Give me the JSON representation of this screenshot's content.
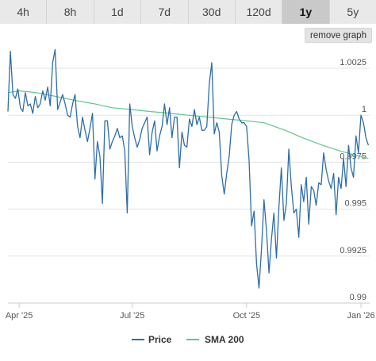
{
  "tabs": [
    {
      "label": "4h",
      "active": false
    },
    {
      "label": "8h",
      "active": false
    },
    {
      "label": "1d",
      "active": false
    },
    {
      "label": "7d",
      "active": false
    },
    {
      "label": "30d",
      "active": false
    },
    {
      "label": "120d",
      "active": false
    },
    {
      "label": "1y",
      "active": true
    },
    {
      "label": "5y",
      "active": false
    }
  ],
  "remove_graph_label": "remove graph",
  "colors": {
    "price": "#2d6ea8",
    "sma": "#5cc98a",
    "grid": "#e3e3e3",
    "text": "#555555"
  },
  "chart_data": {
    "type": "line",
    "title": "",
    "xlabel": "",
    "ylabel": "",
    "x_range": [
      "2025-03-23",
      "2026-01-08"
    ],
    "ylim": [
      0.99,
      1.0036
    ],
    "y_ticks": [
      1.0025,
      1,
      0.9975,
      0.995,
      0.9925,
      0.99
    ],
    "y_tick_labels": [
      "1.0025",
      "1",
      "0.9975",
      "0.995",
      "0.9925",
      "0.99"
    ],
    "x_ticks": [
      "2025-04-01",
      "2025-07-01",
      "2025-10-01",
      "2026-01-01"
    ],
    "x_tick_labels": [
      "Apr '25",
      "Jul '25",
      "Oct '25",
      "Jan '26"
    ],
    "grid": true,
    "legend_position": "bottom",
    "series": [
      {
        "name": "Price",
        "color": "#2d6ea8",
        "x": [
          "2025-03-23",
          "2025-03-25",
          "2025-03-27",
          "2025-03-29",
          "2025-03-31",
          "2025-04-02",
          "2025-04-04",
          "2025-04-06",
          "2025-04-08",
          "2025-04-10",
          "2025-04-12",
          "2025-04-14",
          "2025-04-16",
          "2025-04-18",
          "2025-04-20",
          "2025-04-22",
          "2025-04-24",
          "2025-04-26",
          "2025-04-28",
          "2025-04-30",
          "2025-05-02",
          "2025-05-04",
          "2025-05-06",
          "2025-05-08",
          "2025-05-10",
          "2025-05-12",
          "2025-05-14",
          "2025-05-16",
          "2025-05-18",
          "2025-05-20",
          "2025-05-22",
          "2025-05-24",
          "2025-05-26",
          "2025-05-28",
          "2025-05-30",
          "2025-06-01",
          "2025-06-03",
          "2025-06-05",
          "2025-06-07",
          "2025-06-09",
          "2025-06-11",
          "2025-06-13",
          "2025-06-15",
          "2025-06-17",
          "2025-06-19",
          "2025-06-21",
          "2025-06-23",
          "2025-06-25",
          "2025-06-27",
          "2025-06-29",
          "2025-07-01",
          "2025-07-03",
          "2025-07-05",
          "2025-07-07",
          "2025-07-09",
          "2025-07-11",
          "2025-07-13",
          "2025-07-15",
          "2025-07-17",
          "2025-07-19",
          "2025-07-21",
          "2025-07-23",
          "2025-07-25",
          "2025-07-27",
          "2025-07-29",
          "2025-07-31",
          "2025-08-02",
          "2025-08-04",
          "2025-08-06",
          "2025-08-08",
          "2025-08-10",
          "2025-08-12",
          "2025-08-14",
          "2025-08-16",
          "2025-08-18",
          "2025-08-20",
          "2025-08-22",
          "2025-08-24",
          "2025-08-26",
          "2025-08-28",
          "2025-08-30",
          "2025-09-01",
          "2025-09-03",
          "2025-09-05",
          "2025-09-07",
          "2025-09-09",
          "2025-09-11",
          "2025-09-13",
          "2025-09-15",
          "2025-09-17",
          "2025-09-19",
          "2025-09-21",
          "2025-09-23",
          "2025-09-25",
          "2025-09-27",
          "2025-09-29",
          "2025-10-01",
          "2025-10-03",
          "2025-10-05",
          "2025-10-07",
          "2025-10-09",
          "2025-10-11",
          "2025-10-13",
          "2025-10-15",
          "2025-10-17",
          "2025-10-19",
          "2025-10-21",
          "2025-10-23",
          "2025-10-25",
          "2025-10-27",
          "2025-10-29",
          "2025-10-31",
          "2025-11-02",
          "2025-11-04",
          "2025-11-06",
          "2025-11-08",
          "2025-11-10",
          "2025-11-12",
          "2025-11-14",
          "2025-11-16",
          "2025-11-18",
          "2025-11-20",
          "2025-11-22",
          "2025-11-24",
          "2025-11-26",
          "2025-11-28",
          "2025-11-30",
          "2025-12-02",
          "2025-12-04",
          "2025-12-06",
          "2025-12-08",
          "2025-12-10",
          "2025-12-12",
          "2025-12-14",
          "2025-12-16",
          "2025-12-18",
          "2025-12-20",
          "2025-12-22",
          "2025-12-24",
          "2025-12-26",
          "2025-12-28",
          "2025-12-30",
          "2026-01-01",
          "2026-01-03",
          "2026-01-05",
          "2026-01-07"
        ],
        "values": [
          1.0002,
          1.0034,
          1.0011,
          1.0009,
          1.0014,
          1.0004,
          1.0002,
          1.0012,
          1.0005,
          1.0006,
          1.0001,
          1.001,
          1.0004,
          1.0006,
          1.0013,
          1.0008,
          1.0015,
          1.0005,
          1.0028,
          1.0035,
          1.0003,
          1.0007,
          1.0011,
          1.0006,
          1.0,
          0.9999,
          1.0006,
          1.0011,
          0.9994,
          0.9988,
          0.9999,
          0.9992,
          0.9986,
          0.9993,
          1.0001,
          0.9966,
          0.9986,
          0.9978,
          0.9953,
          0.9997,
          0.9997,
          0.9982,
          0.9986,
          0.9989,
          0.9993,
          0.9988,
          0.9989,
          0.9981,
          0.9948,
          1.0006,
          0.9994,
          0.9988,
          0.9983,
          0.9987,
          0.9993,
          0.9996,
          0.9999,
          0.9979,
          0.9991,
          0.9997,
          0.9981,
          0.9989,
          0.9994,
          1.0006,
          0.9995,
          1.0004,
          0.9988,
          0.9999,
          0.9999,
          0.9972,
          0.9991,
          0.9984,
          0.9983,
          0.9998,
          0.9994,
          1.0003,
          0.9995,
          0.9999,
          0.9992,
          0.9992,
          0.9994,
          1.0017,
          1.0028,
          0.999,
          0.9996,
          0.9991,
          0.9968,
          0.9958,
          0.9969,
          0.9978,
          0.9995,
          1.0,
          1.0002,
          0.9998,
          0.9996,
          0.9996,
          0.9994,
          0.9976,
          0.9941,
          0.9949,
          0.9921,
          0.9908,
          0.9929,
          0.9955,
          0.9939,
          0.9916,
          0.9934,
          0.9948,
          0.9924,
          0.9951,
          0.9972,
          0.9944,
          0.9953,
          0.9982,
          0.9962,
          0.9948,
          0.995,
          0.9935,
          0.9963,
          0.9954,
          0.9967,
          0.9942,
          0.9962,
          0.996,
          0.9952,
          0.9964,
          0.9963,
          0.998,
          0.9971,
          0.9965,
          0.9961,
          0.9969,
          0.9947,
          0.9967,
          0.9961,
          0.9977,
          0.9962,
          0.9984,
          0.9972,
          0.9967,
          0.9989,
          0.998,
          1.0,
          0.9996,
          0.9988,
          0.9984
        ]
      },
      {
        "name": "SMA 200",
        "color": "#5cc98a",
        "x": [
          "2025-03-23",
          "2025-04-01",
          "2025-04-15",
          "2025-05-01",
          "2025-05-15",
          "2025-06-01",
          "2025-06-15",
          "2025-07-01",
          "2025-07-15",
          "2025-08-01",
          "2025-08-15",
          "2025-09-01",
          "2025-09-15",
          "2025-10-01",
          "2025-10-15",
          "2025-11-01",
          "2025-11-15",
          "2025-12-01",
          "2025-12-15",
          "2026-01-01",
          "2026-01-07"
        ],
        "values": [
          1.0012,
          1.0013,
          1.0012,
          1.001,
          1.0008,
          1.0006,
          1.0004,
          1.0003,
          1.0002,
          1.0001,
          1.0,
          0.9999,
          0.9998,
          0.9997,
          0.9996,
          0.9992,
          0.9988,
          0.9984,
          0.9981,
          0.9978,
          0.9977
        ]
      }
    ]
  }
}
